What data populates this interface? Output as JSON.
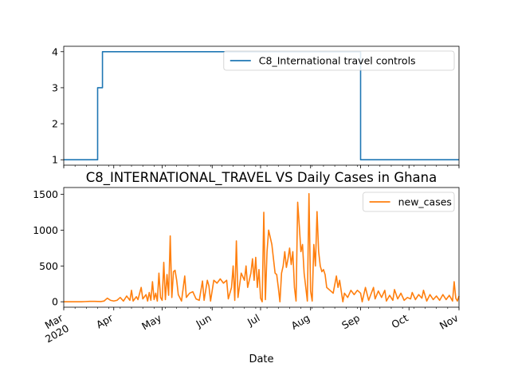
{
  "chart_data": [
    {
      "type": "line",
      "title": "",
      "xlabel": "",
      "ylabel": "",
      "ylim": [
        0.85,
        4.15
      ],
      "yticks": [
        1,
        2,
        3,
        4
      ],
      "legend": "top-right",
      "series": [
        {
          "name": "C8_International travel controls",
          "color": "#1f77b4",
          "points": [
            [
              "2020-03-01",
              1
            ],
            [
              "2020-03-22",
              1
            ],
            [
              "2020-03-22",
              3
            ],
            [
              "2020-03-25",
              3
            ],
            [
              "2020-03-25",
              4
            ],
            [
              "2020-09-01",
              4
            ],
            [
              "2020-09-01",
              1
            ],
            [
              "2020-11-01",
              1
            ]
          ]
        }
      ]
    },
    {
      "type": "line",
      "title": "C8_INTERNATIONAL_TRAVEL VS Daily Cases in Ghana",
      "xlabel": "Date",
      "ylabel": "",
      "ylim": [
        -76,
        1596
      ],
      "yticks": [
        0,
        500,
        1000,
        1500
      ],
      "legend": "top-right",
      "x_tick_labels": [
        {
          "date": "2020-03-01",
          "label": "Mar",
          "sub": "2020"
        },
        {
          "date": "2020-04-01",
          "label": "Apr"
        },
        {
          "date": "2020-05-01",
          "label": "May"
        },
        {
          "date": "2020-06-01",
          "label": "Jun"
        },
        {
          "date": "2020-07-01",
          "label": "Jul"
        },
        {
          "date": "2020-08-01",
          "label": "Aug"
        },
        {
          "date": "2020-09-01",
          "label": "Sep"
        },
        {
          "date": "2020-10-01",
          "label": "Oct"
        },
        {
          "date": "2020-11-01",
          "label": "Nov"
        }
      ],
      "series": [
        {
          "name": "new_cases",
          "color": "#ff7f0e",
          "points": [
            [
              "2020-03-01",
              0
            ],
            [
              "2020-03-12",
              0
            ],
            [
              "2020-03-14",
              2
            ],
            [
              "2020-03-17",
              5
            ],
            [
              "2020-03-20",
              6
            ],
            [
              "2020-03-24",
              3
            ],
            [
              "2020-03-26",
              10
            ],
            [
              "2020-03-28",
              50
            ],
            [
              "2020-03-30",
              20
            ],
            [
              "2020-04-01",
              10
            ],
            [
              "2020-04-03",
              20
            ],
            [
              "2020-04-05",
              60
            ],
            [
              "2020-04-07",
              10
            ],
            [
              "2020-04-09",
              80
            ],
            [
              "2020-04-11",
              20
            ],
            [
              "2020-04-12",
              160
            ],
            [
              "2020-04-13",
              10
            ],
            [
              "2020-04-15",
              70
            ],
            [
              "2020-04-16",
              30
            ],
            [
              "2020-04-18",
              200
            ],
            [
              "2020-04-19",
              40
            ],
            [
              "2020-04-21",
              100
            ],
            [
              "2020-04-22",
              10
            ],
            [
              "2020-04-23",
              130
            ],
            [
              "2020-04-24",
              20
            ],
            [
              "2020-04-25",
              280
            ],
            [
              "2020-04-26",
              30
            ],
            [
              "2020-04-27",
              120
            ],
            [
              "2020-04-28",
              10
            ],
            [
              "2020-04-29",
              400
            ],
            [
              "2020-04-30",
              60
            ],
            [
              "2020-05-01",
              20
            ],
            [
              "2020-05-02",
              550
            ],
            [
              "2020-05-03",
              30
            ],
            [
              "2020-05-04",
              380
            ],
            [
              "2020-05-05",
              90
            ],
            [
              "2020-05-06",
              920
            ],
            [
              "2020-05-07",
              60
            ],
            [
              "2020-05-08",
              420
            ],
            [
              "2020-05-09",
              440
            ],
            [
              "2020-05-10",
              300
            ],
            [
              "2020-05-11",
              100
            ],
            [
              "2020-05-13",
              10
            ],
            [
              "2020-05-15",
              360
            ],
            [
              "2020-05-16",
              60
            ],
            [
              "2020-05-18",
              120
            ],
            [
              "2020-05-20",
              140
            ],
            [
              "2020-05-22",
              40
            ],
            [
              "2020-05-24",
              20
            ],
            [
              "2020-05-26",
              290
            ],
            [
              "2020-05-27",
              20
            ],
            [
              "2020-05-29",
              300
            ],
            [
              "2020-05-30",
              220
            ],
            [
              "2020-05-31",
              10
            ],
            [
              "2020-06-02",
              300
            ],
            [
              "2020-06-04",
              260
            ],
            [
              "2020-06-06",
              320
            ],
            [
              "2020-06-08",
              260
            ],
            [
              "2020-06-10",
              300
            ],
            [
              "2020-06-11",
              40
            ],
            [
              "2020-06-13",
              200
            ],
            [
              "2020-06-14",
              500
            ],
            [
              "2020-06-15",
              20
            ],
            [
              "2020-06-16",
              850
            ],
            [
              "2020-06-17",
              60
            ],
            [
              "2020-06-19",
              400
            ],
            [
              "2020-06-21",
              300
            ],
            [
              "2020-06-22",
              500
            ],
            [
              "2020-06-23",
              200
            ],
            [
              "2020-06-25",
              400
            ],
            [
              "2020-06-26",
              600
            ],
            [
              "2020-06-27",
              300
            ],
            [
              "2020-06-28",
              620
            ],
            [
              "2020-06-29",
              200
            ],
            [
              "2020-06-30",
              450
            ],
            [
              "2020-07-01",
              50
            ],
            [
              "2020-07-02",
              0
            ],
            [
              "2020-07-03",
              1250
            ],
            [
              "2020-07-04",
              30
            ],
            [
              "2020-07-05",
              700
            ],
            [
              "2020-07-06",
              1000
            ],
            [
              "2020-07-07",
              900
            ],
            [
              "2020-07-08",
              800
            ],
            [
              "2020-07-09",
              600
            ],
            [
              "2020-07-10",
              400
            ],
            [
              "2020-07-11",
              380
            ],
            [
              "2020-07-12",
              200
            ],
            [
              "2020-07-13",
              0
            ],
            [
              "2020-07-14",
              400
            ],
            [
              "2020-07-15",
              500
            ],
            [
              "2020-07-16",
              700
            ],
            [
              "2020-07-17",
              480
            ],
            [
              "2020-07-18",
              600
            ],
            [
              "2020-07-19",
              750
            ],
            [
              "2020-07-20",
              520
            ],
            [
              "2020-07-21",
              700
            ],
            [
              "2020-07-22",
              200
            ],
            [
              "2020-07-23",
              10
            ],
            [
              "2020-07-24",
              1390
            ],
            [
              "2020-07-25",
              1060
            ],
            [
              "2020-07-26",
              700
            ],
            [
              "2020-07-27",
              800
            ],
            [
              "2020-07-28",
              400
            ],
            [
              "2020-07-30",
              10
            ],
            [
              "2020-07-31",
              1510
            ],
            [
              "2020-08-01",
              150
            ],
            [
              "2020-08-02",
              10
            ],
            [
              "2020-08-03",
              800
            ],
            [
              "2020-08-04",
              500
            ],
            [
              "2020-08-05",
              1260
            ],
            [
              "2020-08-06",
              700
            ],
            [
              "2020-08-07",
              500
            ],
            [
              "2020-08-08",
              420
            ],
            [
              "2020-08-09",
              450
            ],
            [
              "2020-08-10",
              380
            ],
            [
              "2020-08-11",
              200
            ],
            [
              "2020-08-13",
              160
            ],
            [
              "2020-08-15",
              120
            ],
            [
              "2020-08-17",
              360
            ],
            [
              "2020-08-18",
              200
            ],
            [
              "2020-08-19",
              300
            ],
            [
              "2020-08-21",
              0
            ],
            [
              "2020-08-22",
              120
            ],
            [
              "2020-08-24",
              60
            ],
            [
              "2020-08-26",
              160
            ],
            [
              "2020-08-28",
              100
            ],
            [
              "2020-08-30",
              160
            ],
            [
              "2020-09-01",
              120
            ],
            [
              "2020-09-02",
              0
            ],
            [
              "2020-09-04",
              200
            ],
            [
              "2020-09-06",
              20
            ],
            [
              "2020-09-07",
              80
            ],
            [
              "2020-09-09",
              200
            ],
            [
              "2020-09-10",
              40
            ],
            [
              "2020-09-12",
              150
            ],
            [
              "2020-09-14",
              60
            ],
            [
              "2020-09-16",
              160
            ],
            [
              "2020-09-17",
              10
            ],
            [
              "2020-09-19",
              90
            ],
            [
              "2020-09-21",
              20
            ],
            [
              "2020-09-22",
              170
            ],
            [
              "2020-09-24",
              40
            ],
            [
              "2020-09-26",
              120
            ],
            [
              "2020-09-28",
              20
            ],
            [
              "2020-09-30",
              60
            ],
            [
              "2020-10-02",
              40
            ],
            [
              "2020-10-03",
              130
            ],
            [
              "2020-10-05",
              30
            ],
            [
              "2020-10-07",
              100
            ],
            [
              "2020-10-09",
              50
            ],
            [
              "2020-10-10",
              160
            ],
            [
              "2020-10-12",
              10
            ],
            [
              "2020-10-14",
              100
            ],
            [
              "2020-10-16",
              30
            ],
            [
              "2020-10-18",
              80
            ],
            [
              "2020-10-20",
              20
            ],
            [
              "2020-10-22",
              100
            ],
            [
              "2020-10-24",
              30
            ],
            [
              "2020-10-26",
              90
            ],
            [
              "2020-10-28",
              10
            ],
            [
              "2020-10-29",
              280
            ],
            [
              "2020-10-30",
              50
            ],
            [
              "2020-10-31",
              10
            ],
            [
              "2020-11-01",
              80
            ]
          ]
        }
      ]
    }
  ]
}
